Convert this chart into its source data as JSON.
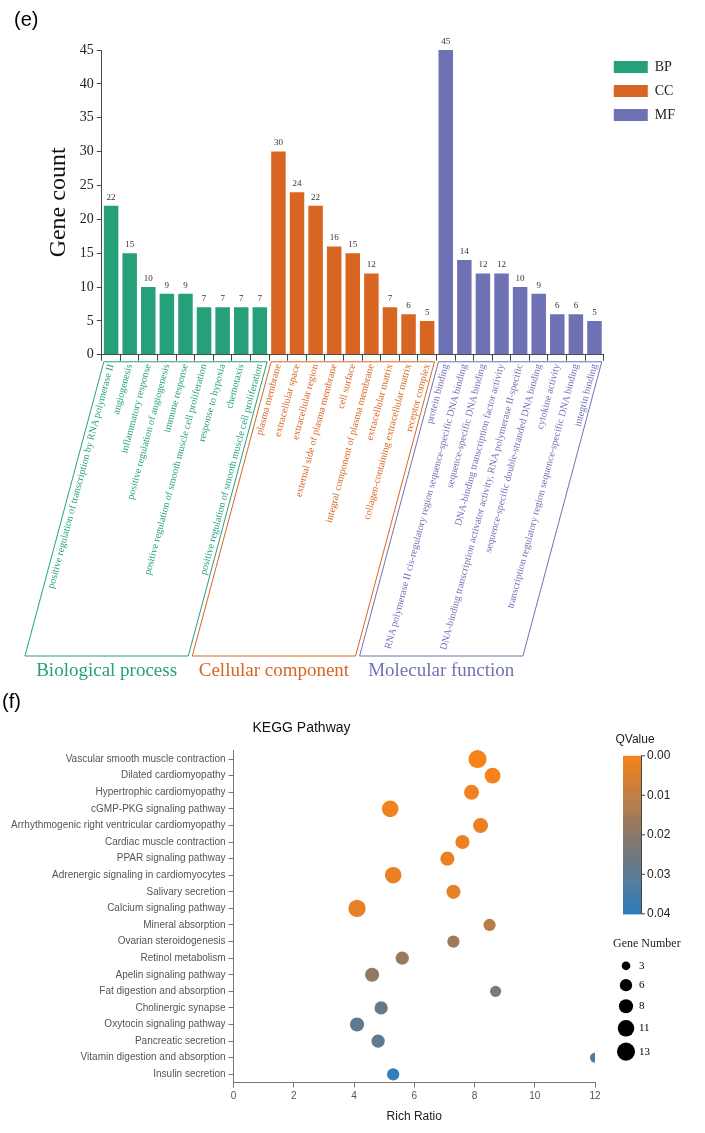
{
  "chart_data": [
    {
      "type": "bar",
      "ylabel": "Gene count",
      "categories": [
        "positive regulation of transcription by RNA polymerase II",
        "angiogenesis",
        "inflammatory response",
        "positive regulation of angiogenesis",
        "immune response",
        "positive regulation of smooth muscle cell proliferation",
        "response to hypoxia",
        "chemotaxis",
        "positive regulation of smooth muscle cell proliferation",
        "plasma membrane",
        "extracellular space",
        "extracellular region",
        "external side of plasma membrane",
        "cell surface",
        "integral component of plasma membrane",
        "extracellular matrix",
        "collagen-containing extracellular matrix",
        "receptor complex",
        "protein binding",
        "RNA polymerase II cis-regulatory region sequence-specific DNA binding",
        "sequence-specific DNA binding",
        "DNA-binding transcription factor activity",
        "DNA-binding transcription activator activity, RNA polymerase II-specific",
        "sequence-specific double-stranded DNA binding",
        "cytokine activity",
        "transcription regulatory region sequence-specific DNA binding",
        "integrin binding"
      ],
      "series": [
        {
          "name": "BP",
          "color": "#26a07a",
          "values": [
            22,
            15,
            10,
            9,
            9,
            7,
            7,
            7,
            7,
            null,
            null,
            null,
            null,
            null,
            null,
            null,
            null,
            null,
            null,
            null,
            null,
            null,
            null,
            null,
            null,
            null,
            null
          ]
        },
        {
          "name": "CC",
          "color": "#d96522",
          "values": [
            null,
            null,
            null,
            null,
            null,
            null,
            null,
            null,
            null,
            30,
            24,
            22,
            16,
            15,
            12,
            7,
            6,
            5,
            null,
            null,
            null,
            null,
            null,
            null,
            null,
            null,
            null
          ]
        },
        {
          "name": "MF",
          "color": "#6e72b5",
          "values": [
            null,
            null,
            null,
            null,
            null,
            null,
            null,
            null,
            null,
            null,
            null,
            null,
            null,
            null,
            null,
            null,
            null,
            null,
            45,
            14,
            12,
            12,
            10,
            9,
            6,
            6,
            5
          ]
        }
      ],
      "ylim": [
        0,
        45
      ],
      "yticks": [
        0,
        5,
        10,
        15,
        20,
        25,
        30,
        35,
        40,
        45
      ],
      "data_labels": true,
      "legend": "top right",
      "grid": false,
      "annotations": [
        "(e)",
        "Biological process",
        "Cellular component",
        "Molecular function"
      ]
    },
    {
      "type": "bubble",
      "title": "KEGG Pathway",
      "xlabel": "Rich Ratio",
      "orientation": "horizontal",
      "categories": [
        "Vascular smooth muscle contraction",
        "Dilated cardiomyopathy",
        "Hypertrophic cardiomyopathy",
        "cGMP-PKG signaling pathway",
        "Arrhythmogenic right ventricular cardiomyopathy",
        "Cardiac muscle contraction",
        "PPAR signaling pathway",
        "Adrenergic signaling in cardiomyocytes",
        "Salivary secretion",
        "Calcium signaling pathway",
        "Mineral absorption",
        "Ovarian steroidogenesis",
        "Retinol metabolism",
        "Apelin signaling pathway",
        "Fat digestion and absorption",
        "Cholinergic synapse",
        "Oxytocin signaling pathway",
        "Pancreatic secretion",
        "Vitamin digestion and absorption",
        "Insulin secretion"
      ],
      "values": [
        8.1,
        8.6,
        7.9,
        5.2,
        8.2,
        7.6,
        7.1,
        5.3,
        7.3,
        4.1,
        8.5,
        7.3,
        5.6,
        4.6,
        8.7,
        4.9,
        4.1,
        4.8,
        12.0,
        5.3
      ],
      "sizes": [
        13,
        10,
        9,
        11,
        9,
        8,
        8,
        11,
        8,
        12,
        6,
        6,
        7,
        8,
        5,
        7,
        8,
        7,
        4,
        6
      ],
      "cvalues": [
        0.0,
        0.0,
        0.001,
        0.001,
        0.002,
        0.002,
        0.002,
        0.002,
        0.003,
        0.003,
        0.011,
        0.016,
        0.017,
        0.018,
        0.022,
        0.028,
        0.029,
        0.029,
        0.032,
        0.038
      ],
      "xlim": [
        0,
        12
      ],
      "xticks": [
        0,
        2,
        4,
        6,
        8,
        10,
        12
      ],
      "clabel": "QValue",
      "clim": [
        0,
        0.04
      ],
      "cticks": [
        {
          "value": 0,
          "label": "0.00"
        },
        {
          "value": 0.01,
          "label": "0.01"
        },
        {
          "value": 0.02,
          "label": "0.02"
        },
        {
          "value": 0.03,
          "label": "0.03"
        },
        {
          "value": 0.04,
          "label": "0.04"
        }
      ],
      "legend_title": "Gene Number",
      "size_legend": [
        3,
        6,
        8,
        11,
        13
      ],
      "grid": false,
      "annotations": [
        "(f)"
      ]
    }
  ]
}
